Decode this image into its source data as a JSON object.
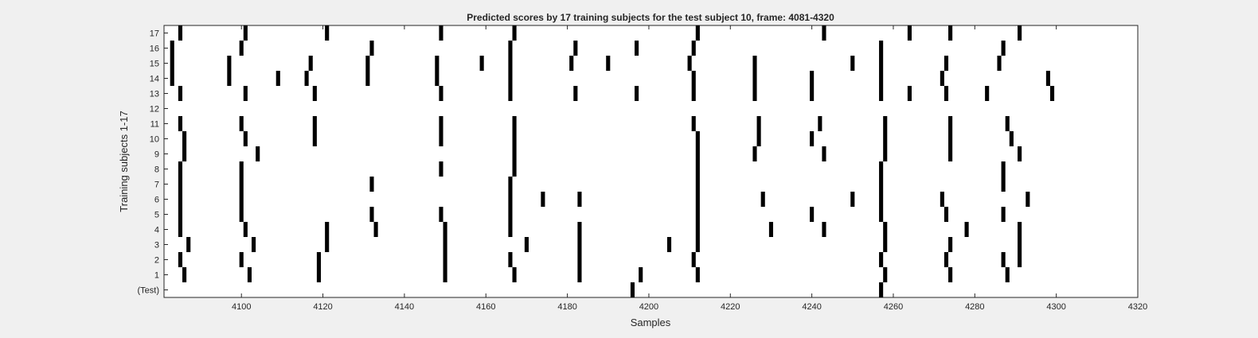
{
  "chart_data": {
    "type": "heatmap",
    "title": "Predicted scores by 17 training subjects for the test subject 10, frame: 4081-4320",
    "xlabel": "Samples",
    "ylabel": "Training subjects 1-17",
    "xlim": [
      4081,
      4320
    ],
    "x_ticks": [
      4100,
      4120,
      4140,
      4160,
      4180,
      4200,
      4220,
      4240,
      4260,
      4280,
      4300,
      4320
    ],
    "y_tick_labels": [
      "(Test)",
      "1",
      "2",
      "3",
      "4",
      "5",
      "6",
      "7",
      "8",
      "9",
      "10",
      "11",
      "12",
      "13",
      "14",
      "15",
      "16",
      "17"
    ],
    "grid": false,
    "colors": {
      "mark": "#000000",
      "plot_bg": "#ffffff",
      "figure_bg": "#f0f0f0"
    },
    "series": [
      {
        "row": "(Test)",
        "x": [
          4196,
          4257
        ]
      },
      {
        "row": "1",
        "x": [
          4086,
          4102,
          4119,
          4150,
          4167,
          4183,
          4198,
          4212,
          4258,
          4274,
          4288
        ]
      },
      {
        "row": "2",
        "x": [
          4085,
          4100,
          4119,
          4150,
          4166,
          4183,
          4211,
          4257,
          4273,
          4287,
          4291
        ]
      },
      {
        "row": "3",
        "x": [
          4087,
          4103,
          4121,
          4150,
          4170,
          4183,
          4205,
          4212,
          4258,
          4274,
          4291
        ]
      },
      {
        "row": "4",
        "x": [
          4085,
          4101,
          4121,
          4133,
          4150,
          4166,
          4183,
          4212,
          4230,
          4243,
          4258,
          4278,
          4291
        ]
      },
      {
        "row": "5",
        "x": [
          4085,
          4100,
          4132,
          4149,
          4166,
          4212,
          4240,
          4257,
          4273,
          4287
        ]
      },
      {
        "row": "6",
        "x": [
          4085,
          4100,
          4166,
          4174,
          4183,
          4212,
          4228,
          4250,
          4257,
          4272,
          4293
        ]
      },
      {
        "row": "7",
        "x": [
          4085,
          4100,
          4132,
          4166,
          4212,
          4257,
          4287
        ]
      },
      {
        "row": "8",
        "x": [
          4085,
          4100,
          4149,
          4167,
          4212,
          4257,
          4287
        ]
      },
      {
        "row": "9",
        "x": [
          4086,
          4104,
          4167,
          4212,
          4226,
          4243,
          4258,
          4274,
          4291
        ]
      },
      {
        "row": "10",
        "x": [
          4086,
          4101,
          4118,
          4149,
          4167,
          4212,
          4227,
          4240,
          4258,
          4274,
          4289
        ]
      },
      {
        "row": "11",
        "x": [
          4085,
          4100,
          4118,
          4149,
          4167,
          4211,
          4227,
          4242,
          4258,
          4274,
          4288
        ]
      },
      {
        "row": "12",
        "x": []
      },
      {
        "row": "13",
        "x": [
          4085,
          4101,
          4118,
          4149,
          4166,
          4182,
          4197,
          4211,
          4226,
          4240,
          4257,
          4264,
          4273,
          4283,
          4299
        ]
      },
      {
        "row": "14",
        "x": [
          4083,
          4097,
          4109,
          4116,
          4131,
          4148,
          4166,
          4211,
          4226,
          4240,
          4257,
          4272,
          4298
        ]
      },
      {
        "row": "15",
        "x": [
          4083,
          4097,
          4117,
          4131,
          4148,
          4159,
          4166,
          4181,
          4190,
          4210,
          4226,
          4250,
          4257,
          4273,
          4286
        ]
      },
      {
        "row": "16",
        "x": [
          4083,
          4100,
          4132,
          4166,
          4182,
          4197,
          4211,
          4257,
          4287
        ]
      },
      {
        "row": "17",
        "x": [
          4085,
          4101,
          4121,
          4149,
          4167,
          4212,
          4243,
          4264,
          4274,
          4291
        ]
      }
    ]
  }
}
